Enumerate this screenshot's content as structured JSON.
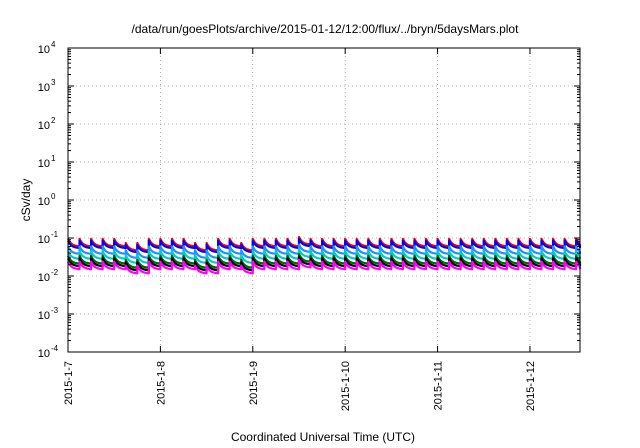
{
  "chart_data": {
    "type": "line",
    "title": "/data/run/goesPlots/archive/2015-01-12/12:00/flux/../bryn/5daysMars.plot",
    "xlabel": "Coordinated Universal Time (UTC)",
    "ylabel": "cSv/day",
    "yscale": "log",
    "ylim": [
      0.0001,
      10000
    ],
    "y_ticks": [
      {
        "base": "10",
        "exp": "-4",
        "value": 0.0001
      },
      {
        "base": "10",
        "exp": "-3",
        "value": 0.001
      },
      {
        "base": "10",
        "exp": "-2",
        "value": 0.01
      },
      {
        "base": "10",
        "exp": "-1",
        "value": 0.1
      },
      {
        "base": "10",
        "exp": "0",
        "value": 1
      },
      {
        "base": "10",
        "exp": "1",
        "value": 10
      },
      {
        "base": "10",
        "exp": "2",
        "value": 100
      },
      {
        "base": "10",
        "exp": "3",
        "value": 1000
      },
      {
        "base": "10",
        "exp": "4",
        "value": 10000
      }
    ],
    "xlim": [
      "2015-01-07",
      "2015-01-12 13:00"
    ],
    "x_ticks": [
      "2015-1-7",
      "2015-1-8",
      "2015-1-9",
      "2015-1-10",
      "2015-1-11",
      "2015-1-12"
    ],
    "grid": true,
    "pattern": "repeating sawtooth decay, about 8 cycles per day",
    "series": [
      {
        "color": "#ff0000",
        "peak": 0.095,
        "trough": 0.06
      },
      {
        "color": "#0000ff",
        "peak": 0.085,
        "trough": 0.054
      },
      {
        "color": "#1e90ff",
        "peak": 0.06,
        "trough": 0.038
      },
      {
        "color": "#00cccc",
        "peak": 0.045,
        "trough": 0.028
      },
      {
        "color": "#006400",
        "peak": 0.034,
        "trough": 0.021
      },
      {
        "color": "#000000",
        "peak": 0.029,
        "trough": 0.018
      },
      {
        "color": "#ff00ff",
        "peak": 0.024,
        "trough": 0.015
      }
    ]
  }
}
